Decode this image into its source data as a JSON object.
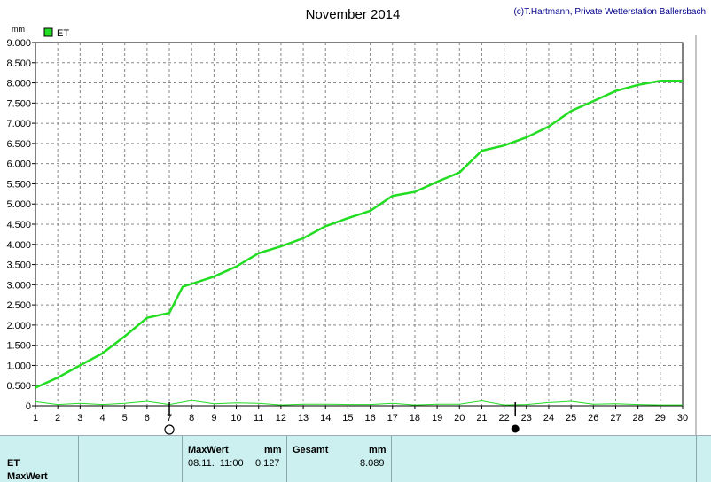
{
  "header": {
    "title": "November 2014",
    "credit": "(c)T.Hartmann, Private Wetterstation Ballersbach"
  },
  "chart_data": {
    "type": "line",
    "title": "November 2014",
    "ylabel": "mm",
    "ylim": [
      0,
      9.0
    ],
    "yticks": [
      "0",
      "0.500",
      "1.000",
      "1.500",
      "2.000",
      "2.500",
      "3.000",
      "3.500",
      "4.000",
      "4.500",
      "5.000",
      "5.500",
      "6.000",
      "6.500",
      "7.000",
      "7.500",
      "8.000",
      "8.500",
      "9.000"
    ],
    "x": [
      "1",
      "2",
      "3",
      "4",
      "5",
      "6",
      "7",
      "8",
      "9",
      "10",
      "11",
      "12",
      "13",
      "14",
      "15",
      "16",
      "17",
      "18",
      "19",
      "20",
      "21",
      "22",
      "23",
      "24",
      "25",
      "26",
      "27",
      "28",
      "29",
      "30"
    ],
    "xlim": [
      1,
      30
    ],
    "grid": true,
    "legend": "top-left",
    "series": [
      {
        "name": "ET",
        "color": "#22dd22",
        "points": [
          [
            1,
            0.45
          ],
          [
            2,
            0.7
          ],
          [
            3,
            1.0
          ],
          [
            4,
            1.3
          ],
          [
            5,
            1.72
          ],
          [
            6,
            2.18
          ],
          [
            7,
            2.3
          ],
          [
            7.6,
            2.95
          ],
          [
            9,
            3.2
          ],
          [
            10,
            3.45
          ],
          [
            11,
            3.78
          ],
          [
            12,
            3.95
          ],
          [
            13,
            4.15
          ],
          [
            14,
            4.45
          ],
          [
            15,
            4.65
          ],
          [
            16,
            4.83
          ],
          [
            17,
            5.2
          ],
          [
            18,
            5.3
          ],
          [
            19,
            5.55
          ],
          [
            20,
            5.78
          ],
          [
            21,
            6.32
          ],
          [
            22,
            6.45
          ],
          [
            23,
            6.65
          ],
          [
            24,
            6.92
          ],
          [
            25,
            7.3
          ],
          [
            26,
            7.55
          ],
          [
            27,
            7.8
          ],
          [
            28,
            7.95
          ],
          [
            29,
            8.05
          ],
          [
            30,
            8.05
          ]
        ]
      },
      {
        "color": "#22dd22",
        "points": [
          [
            1,
            0.1
          ],
          [
            2,
            0.03
          ],
          [
            3,
            0.06
          ],
          [
            4,
            0.03
          ],
          [
            5,
            0.06
          ],
          [
            6,
            0.11
          ],
          [
            7,
            0.03
          ],
          [
            8,
            0.13
          ],
          [
            9,
            0.05
          ],
          [
            10,
            0.07
          ],
          [
            11,
            0.06
          ],
          [
            12,
            0.02
          ],
          [
            13,
            0.04
          ],
          [
            14,
            0.04
          ],
          [
            15,
            0.03
          ],
          [
            16,
            0.03
          ],
          [
            17,
            0.06
          ],
          [
            18,
            0.02
          ],
          [
            19,
            0.04
          ],
          [
            20,
            0.04
          ],
          [
            21,
            0.12
          ],
          [
            22,
            0.02
          ],
          [
            23,
            0.03
          ],
          [
            24,
            0.08
          ],
          [
            25,
            0.11
          ],
          [
            26,
            0.04
          ],
          [
            27,
            0.05
          ],
          [
            28,
            0.03
          ],
          [
            29,
            0.02
          ],
          [
            30,
            0.02
          ]
        ]
      }
    ],
    "moon_markers": [
      {
        "day": 7,
        "phase": "full-moon"
      },
      {
        "day": 22.5,
        "phase": "new-moon"
      }
    ]
  },
  "footer": {
    "row_label_et": "ET",
    "row_label_maxwert": "MaxWert",
    "max_header": "MaxWert",
    "max_unit": "mm",
    "max_datetime": "08.11.  11:00",
    "max_value": "0.127",
    "total_header": "Gesamt",
    "total_unit": "mm",
    "total_value": "8.089"
  }
}
